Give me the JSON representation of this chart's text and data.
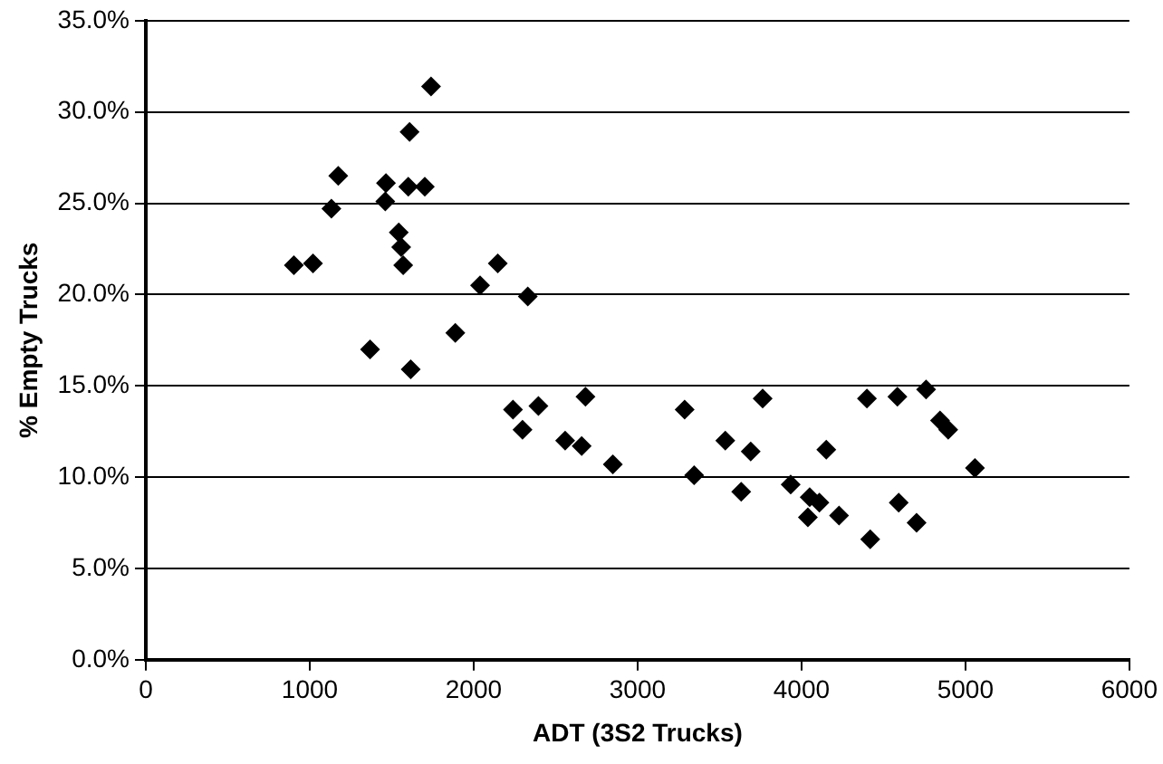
{
  "chart_data": {
    "type": "scatter",
    "xlabel": "ADT (3S2 Trucks)",
    "ylabel": "% Empty Trucks",
    "marker": "diamond",
    "grid": "y",
    "legend": false,
    "xlim": [
      0,
      6000
    ],
    "xticks": [
      0,
      1000,
      2000,
      3000,
      4000,
      5000,
      6000
    ],
    "ylim": [
      0,
      35
    ],
    "yticks": [
      {
        "value": 0,
        "label": "0.0%"
      },
      {
        "value": 5,
        "label": "5.0%"
      },
      {
        "value": 10,
        "label": "10.0%"
      },
      {
        "value": 15,
        "label": "15.0%"
      },
      {
        "value": 20,
        "label": "20.0%"
      },
      {
        "value": 25,
        "label": "25.0%"
      },
      {
        "value": 30,
        "label": "30.0%"
      },
      {
        "value": 35,
        "label": "35.0%"
      }
    ],
    "series": [
      {
        "color": "#000000",
        "x": [
          903,
          1020,
          1132,
          1174,
          1465,
          1461,
          1601,
          1702,
          1609,
          1740,
          1543,
          1558,
          1570,
          1368,
          1616,
          1888,
          2039,
          2147,
          2330,
          2240,
          2298,
          2395,
          2682,
          2558,
          2659,
          2849,
          3287,
          3345,
          3535,
          3632,
          3690,
          3763,
          3934,
          4050,
          4109,
          4039,
          4151,
          4229,
          4399,
          4419,
          4585,
          4593,
          4760,
          4702,
          4845,
          4895,
          5058
        ],
        "values": [
          21.6,
          21.7,
          24.7,
          26.5,
          26.1,
          25.1,
          25.9,
          25.9,
          28.9,
          31.4,
          23.4,
          22.6,
          21.6,
          17.0,
          15.9,
          17.9,
          20.5,
          21.7,
          19.9,
          13.7,
          12.6,
          13.9,
          14.4,
          12.0,
          11.7,
          10.7,
          13.7,
          10.1,
          12.0,
          9.2,
          11.4,
          14.3,
          9.6,
          8.9,
          8.6,
          7.8,
          11.5,
          7.9,
          14.3,
          6.6,
          14.4,
          8.6,
          14.8,
          7.5,
          13.1,
          12.6,
          10.5
        ]
      }
    ]
  }
}
